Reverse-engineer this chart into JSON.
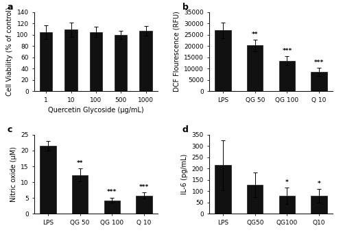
{
  "panel_a": {
    "categories": [
      "1",
      "10",
      "100",
      "500",
      "1000"
    ],
    "values": [
      105,
      109,
      105,
      100,
      107
    ],
    "errors": [
      12,
      13,
      9,
      7,
      8
    ],
    "xlabel": "Quercetin Glycoside (µg/mL)",
    "ylabel": "Cell Viability (% of control)",
    "ylim": [
      0,
      140
    ],
    "yticks": [
      0,
      20,
      40,
      60,
      80,
      100,
      120,
      140
    ],
    "label": "a",
    "sig": [
      "",
      "",
      "",
      "",
      ""
    ]
  },
  "panel_b": {
    "categories": [
      "LPS",
      "QG 50",
      "QG 100",
      "Q 10"
    ],
    "values": [
      27000,
      20300,
      13500,
      8500
    ],
    "errors": [
      3500,
      2500,
      2000,
      1800
    ],
    "sig": [
      "",
      "**",
      "***",
      "***"
    ],
    "xlabel": "",
    "ylabel": "DCF Flourescence (RFU)",
    "ylim": [
      0,
      35000
    ],
    "yticks": [
      0,
      5000,
      10000,
      15000,
      20000,
      25000,
      30000,
      35000
    ],
    "label": "b"
  },
  "panel_c": {
    "categories": [
      "LPS",
      "QG 50",
      "QG 100",
      "Q 10"
    ],
    "values": [
      21.5,
      12.3,
      4.3,
      5.8
    ],
    "errors": [
      1.5,
      2.0,
      0.8,
      0.9
    ],
    "sig": [
      "",
      "**",
      "***",
      "***"
    ],
    "xlabel": "",
    "ylabel": "Nitric oxide (µM)",
    "ylim": [
      0,
      25
    ],
    "yticks": [
      0,
      5,
      10,
      15,
      20,
      25
    ],
    "label": "c"
  },
  "panel_d": {
    "categories": [
      "LPS",
      "QG50",
      "QG100",
      "Q10"
    ],
    "values": [
      215,
      128,
      80,
      80
    ],
    "errors": [
      110,
      55,
      35,
      30
    ],
    "sig": [
      "",
      "",
      "*",
      "*"
    ],
    "xlabel": "",
    "ylabel": "IL-6 (pg/mL)",
    "ylim": [
      0,
      350
    ],
    "yticks": [
      0,
      50,
      100,
      150,
      200,
      250,
      300,
      350
    ],
    "label": "d"
  },
  "bar_color": "#111111",
  "bar_width": 0.5,
  "sig_fontsize": 6.5,
  "label_fontsize": 9,
  "tick_fontsize": 6.5,
  "axis_label_fontsize": 7.0,
  "xlabel_fontsize": 7.0
}
